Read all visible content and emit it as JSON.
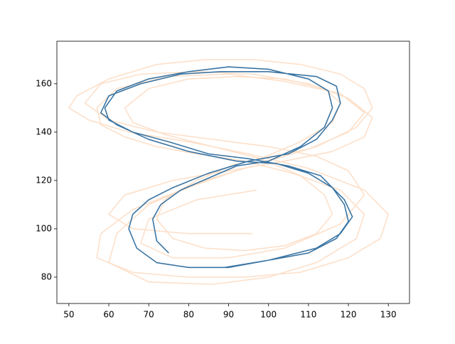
{
  "chart_data": {
    "type": "line",
    "xlim": [
      47,
      135.3
    ],
    "ylim": [
      69.1,
      177.6
    ],
    "xticks": [
      50,
      60,
      70,
      80,
      90,
      100,
      110,
      120,
      130
    ],
    "yticks": [
      80,
      100,
      120,
      140,
      160
    ],
    "series": [
      {
        "color": "#fde0ca",
        "x": [
          100,
          112,
          122,
          126,
          124,
          118,
          108,
          96,
          84,
          72,
          60,
          52,
          50,
          55,
          65,
          80,
          95,
          110,
          124,
          130,
          128,
          120,
          108,
          94,
          80,
          66,
          57,
          58,
          66,
          78,
          92
        ],
        "values": [
          128,
          134,
          142,
          150,
          158,
          164,
          168,
          170,
          170,
          168,
          162,
          155,
          150,
          145,
          140,
          136,
          131,
          125,
          116,
          106,
          96,
          88,
          82,
          80,
          80,
          82,
          88,
          98,
          108,
          116,
          124
        ]
      },
      {
        "color": "#fde0ca",
        "x": [
          98,
          108,
          116,
          118,
          114,
          104,
          92,
          80,
          70,
          64,
          66,
          74,
          86,
          98,
          108,
          114,
          116,
          112,
          104,
          94,
          84,
          76,
          72,
          74,
          82,
          92
        ],
        "values": [
          129,
          136,
          144,
          152,
          158,
          162,
          163,
          162,
          158,
          150,
          144,
          139,
          134,
          129,
          122,
          114,
          106,
          98,
          93,
          91,
          92,
          96,
          104,
          112,
          120,
          127
        ]
      },
      {
        "color": "#fde0ca",
        "x": [
          95,
          110,
          120,
          124,
          118,
          104,
          90,
          75,
          62,
          57,
          58,
          64,
          72,
          82,
          94,
          106,
          118,
          124,
          122,
          112,
          100,
          86,
          70,
          60,
          62,
          70,
          84,
          96
        ],
        "values": [
          128,
          133,
          140,
          148,
          156,
          161,
          164,
          163,
          158,
          150,
          143,
          138,
          134,
          131,
          128,
          123,
          116,
          106,
          96,
          86,
          80,
          77,
          78,
          86,
          98,
          110,
          120,
          126
        ]
      },
      {
        "color": "#fde0ca",
        "x": [
          96,
          80,
          66,
          60,
          64,
          76,
          90,
          104,
          116,
          124,
          126,
          120,
          110,
          96,
          82,
          68,
          58,
          54,
          60,
          72,
          86,
          100,
          112,
          120,
          124,
          118,
          104,
          90,
          76,
          68,
          70,
          82,
          97
        ],
        "values": [
          98,
          98,
          100,
          106,
          114,
          120,
          124,
          128,
          132,
          138,
          146,
          154,
          160,
          164,
          165,
          164,
          160,
          152,
          145,
          140,
          137,
          134,
          130,
          124,
          114,
          102,
          92,
          88,
          88,
          94,
          104,
          112,
          116
        ]
      },
      {
        "color": "#3b75a3",
        "x": [
          75,
          72,
          71,
          73,
          78,
          85,
          92,
          100,
          108,
          114,
          116,
          115,
          110,
          100,
          90,
          80,
          70,
          62,
          59,
          60,
          66,
          75,
          85,
          95,
          105,
          113,
          119,
          121,
          118,
          112,
          100,
          90,
          80,
          72,
          67,
          65,
          66,
          70,
          76,
          85,
          95,
          105,
          112,
          116,
          118,
          117,
          112,
          100,
          88,
          78,
          68,
          60,
          58,
          62,
          70,
          80,
          92,
          102,
          110,
          116,
          119,
          120,
          117,
          110,
          100,
          89
        ],
        "values": [
          90,
          95,
          104,
          110,
          116,
          121,
          126,
          128,
          134,
          142,
          150,
          157,
          162,
          166,
          167,
          165,
          162,
          157,
          150,
          145,
          140,
          136,
          131,
          129,
          126,
          122,
          112,
          105,
          98,
          92,
          87,
          84,
          84,
          86,
          92,
          100,
          106,
          112,
          117,
          123,
          128,
          131,
          137,
          145,
          152,
          159,
          163,
          165,
          165,
          164,
          160,
          155,
          148,
          143,
          137,
          132,
          128,
          127,
          123,
          117,
          110,
          103,
          96,
          90,
          87,
          84
        ]
      }
    ]
  }
}
